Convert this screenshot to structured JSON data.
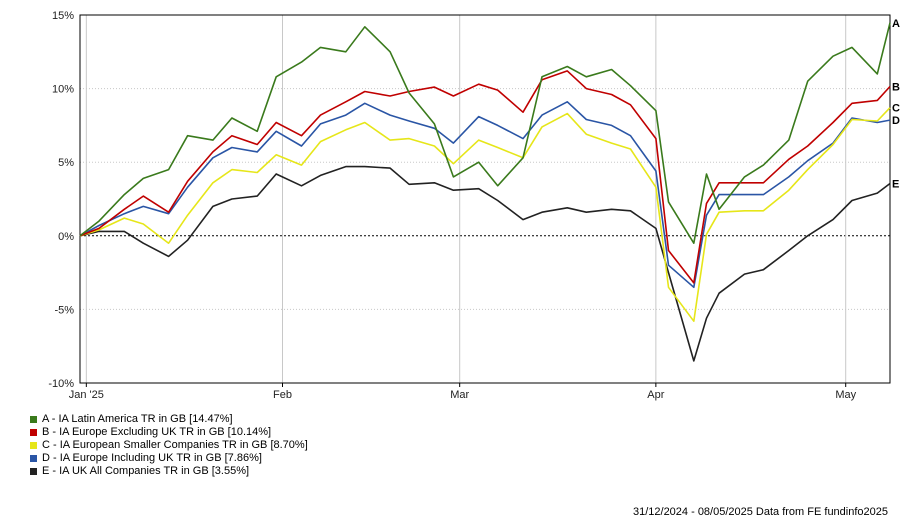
{
  "chart_data": {
    "type": "line",
    "title": "",
    "xlabel": "",
    "ylabel": "",
    "ylim": [
      -10,
      15
    ],
    "yticks": [
      -10,
      -5,
      0,
      5,
      10,
      15
    ],
    "ytick_labels": [
      "-10%",
      "-5%",
      "0%",
      "5%",
      "10%",
      "15%"
    ],
    "xlim": [
      "2024-12-31",
      "2025-05-08"
    ],
    "xticks": [
      {
        "date": "2025-01-01",
        "label": "Jan '25"
      },
      {
        "date": "2025-02-01",
        "label": "Feb"
      },
      {
        "date": "2025-03-01",
        "label": "Mar"
      },
      {
        "date": "2025-04-01",
        "label": "Apr"
      },
      {
        "date": "2025-05-01",
        "label": "May"
      }
    ],
    "grid": true,
    "zero_line": true,
    "legend_position": "bottom-left",
    "x": [
      "2024-12-31",
      "2025-01-03",
      "2025-01-07",
      "2025-01-10",
      "2025-01-14",
      "2025-01-17",
      "2025-01-21",
      "2025-01-24",
      "2025-01-28",
      "2025-01-31",
      "2025-02-04",
      "2025-02-07",
      "2025-02-11",
      "2025-02-14",
      "2025-02-18",
      "2025-02-21",
      "2025-02-25",
      "2025-02-28",
      "2025-03-04",
      "2025-03-07",
      "2025-03-11",
      "2025-03-14",
      "2025-03-18",
      "2025-03-21",
      "2025-03-25",
      "2025-03-28",
      "2025-04-01",
      "2025-04-03",
      "2025-04-07",
      "2025-04-09",
      "2025-04-11",
      "2025-04-15",
      "2025-04-18",
      "2025-04-22",
      "2025-04-25",
      "2025-04-29",
      "2025-05-02",
      "2025-05-06",
      "2025-05-08"
    ],
    "series": [
      {
        "name": "A - IA Latin America TR in GB [14.47%]",
        "label": "A",
        "color": "#3a7a1c",
        "values": [
          0,
          1.0,
          2.8,
          3.9,
          4.5,
          6.8,
          6.5,
          8.0,
          7.1,
          10.8,
          11.8,
          12.8,
          12.5,
          14.2,
          12.5,
          9.7,
          7.6,
          4.0,
          5.0,
          3.4,
          5.3,
          10.8,
          11.5,
          10.8,
          11.3,
          10.2,
          8.5,
          2.3,
          -0.5,
          4.2,
          1.8,
          4.0,
          4.8,
          6.5,
          10.5,
          12.2,
          12.8,
          11.0,
          14.47
        ]
      },
      {
        "name": "B - IA Europe Excluding UK TR in GB [10.14%]",
        "label": "B",
        "color": "#c00000",
        "values": [
          0,
          0.5,
          1.8,
          2.7,
          1.6,
          3.7,
          5.7,
          6.8,
          6.2,
          7.7,
          6.8,
          8.2,
          9.1,
          9.8,
          9.5,
          9.8,
          10.1,
          9.5,
          10.3,
          9.9,
          8.4,
          10.6,
          11.2,
          10.0,
          9.6,
          8.9,
          6.6,
          -1.0,
          -3.2,
          2.2,
          3.6,
          3.6,
          3.6,
          5.2,
          6.1,
          7.7,
          9.0,
          9.2,
          10.14
        ]
      },
      {
        "name": "C - IA European Smaller Companies TR in GB [8.70%]",
        "label": "C",
        "color": "#e6e619",
        "values": [
          0,
          0.4,
          1.2,
          0.8,
          -0.5,
          1.4,
          3.6,
          4.5,
          4.3,
          5.5,
          4.8,
          6.4,
          7.2,
          7.7,
          6.5,
          6.6,
          6.1,
          4.9,
          6.5,
          6.0,
          5.3,
          7.4,
          8.3,
          6.9,
          6.3,
          5.9,
          3.3,
          -3.5,
          -5.8,
          0.1,
          1.6,
          1.7,
          1.7,
          3.1,
          4.5,
          6.2,
          7.9,
          7.8,
          8.7
        ]
      },
      {
        "name": "D - IA Europe Including UK TR in GB [7.86%]",
        "label": "D",
        "color": "#2a55a5",
        "values": [
          0,
          0.7,
          1.5,
          2.0,
          1.5,
          3.3,
          5.3,
          6.0,
          5.7,
          7.1,
          6.1,
          7.6,
          8.2,
          9.0,
          8.2,
          7.8,
          7.3,
          6.3,
          8.1,
          7.5,
          6.6,
          8.2,
          9.1,
          7.9,
          7.5,
          6.8,
          4.4,
          -2.0,
          -3.5,
          1.4,
          2.8,
          2.8,
          2.8,
          4.0,
          5.1,
          6.3,
          8.0,
          7.7,
          7.86
        ]
      },
      {
        "name": "E - IA UK All Companies TR in GB [3.55%]",
        "label": "E",
        "color": "#222222",
        "values": [
          0,
          0.3,
          0.3,
          -0.5,
          -1.4,
          -0.3,
          2.0,
          2.5,
          2.7,
          4.2,
          3.4,
          4.1,
          4.7,
          4.7,
          4.6,
          3.5,
          3.6,
          3.1,
          3.2,
          2.4,
          1.1,
          1.6,
          1.9,
          1.6,
          1.8,
          1.7,
          0.5,
          -2.5,
          -8.5,
          -5.6,
          -3.9,
          -2.6,
          -2.3,
          -1.0,
          0.0,
          1.1,
          2.4,
          2.9,
          3.55
        ]
      }
    ]
  },
  "source_text": "31/12/2024 - 08/05/2025 Data from FE fundinfo2025"
}
